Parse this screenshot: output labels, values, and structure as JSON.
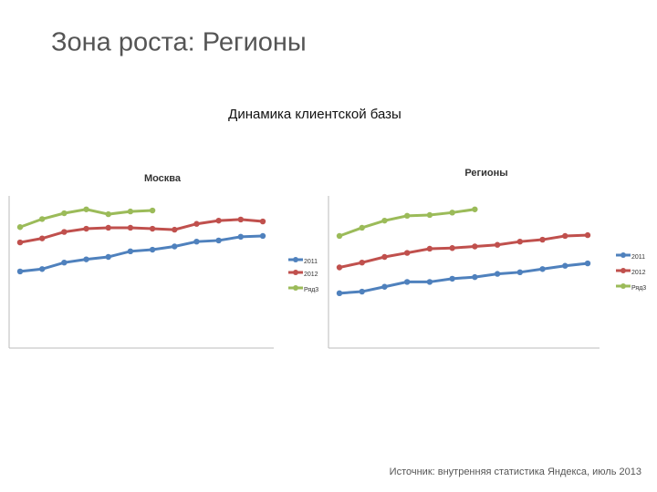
{
  "slide_title": "Зона роста: Регионы",
  "heading": "Динамика клиентской базы",
  "source": "Источник: внутренняя статистика Яндекса, июль 2013",
  "chart_data": [
    {
      "type": "line",
      "title": "Москва",
      "categories": [
        null,
        null,
        null,
        null,
        null,
        null,
        null,
        null,
        null,
        null,
        null,
        null
      ],
      "ylim": [
        0,
        100
      ],
      "series": [
        {
          "name": "2011",
          "color": "#4f81bd",
          "values": [
            47.5,
            49,
            53,
            55,
            56.5,
            60,
            61,
            63,
            66,
            66.7,
            69,
            69.5
          ]
        },
        {
          "name": "2012",
          "color": "#c0504d",
          "values": [
            65.5,
            68,
            72,
            74,
            74.6,
            74.6,
            74,
            73.4,
            77,
            79,
            79.7,
            78.5
          ]
        },
        {
          "name": "Ряд3",
          "color": "#9bbb59",
          "values": [
            75,
            80,
            83.6,
            86,
            83,
            84.7,
            85.3,
            null,
            null,
            null,
            null,
            null
          ]
        }
      ]
    },
    {
      "type": "line",
      "title": "Регионы",
      "categories": [
        null,
        null,
        null,
        null,
        null,
        null,
        null,
        null,
        null,
        null,
        null,
        null
      ],
      "ylim": [
        0,
        100
      ],
      "series": [
        {
          "name": "2011",
          "color": "#4f81bd",
          "values": [
            34,
            35,
            38,
            41,
            41,
            43,
            44,
            46,
            47,
            49,
            51,
            52.5
          ]
        },
        {
          "name": "2012",
          "color": "#c0504d",
          "values": [
            50,
            53,
            56.5,
            59,
            61.6,
            62,
            63,
            64,
            66,
            67.2,
            69.5,
            70
          ]
        },
        {
          "name": "Ряд3",
          "color": "#9bbb59",
          "values": [
            69.5,
            74.6,
            79,
            82,
            82.5,
            84,
            86,
            null,
            null,
            null,
            null,
            null
          ]
        }
      ]
    }
  ]
}
